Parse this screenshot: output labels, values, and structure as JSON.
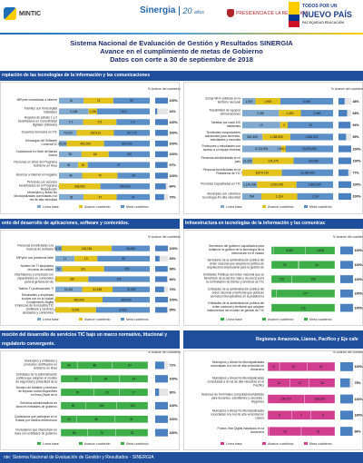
{
  "header": {
    "mintic": "MINTIC",
    "sinergia": "Sinergia",
    "sinergia_years": "20",
    "sinergia_years_sub": "años",
    "presidencia": "PRESIDENCIA DE LA REPÚBLICA",
    "todos_line1": "TODOS POR UN",
    "todos_line2": "NUEVO PAÍS",
    "todos_line3": "PAZ EQUIDAD EDUCACIÓN"
  },
  "titles": {
    "line1": "Sistema Nacional de Evaluación de Gestión y Resultados SINERGIA",
    "line2": "Avance en el cumplimiento de metas de Gobierno",
    "line3": "Datos con corte a 30 de septiembre de 2018"
  },
  "sections": {
    "s1": "ropiación de las tecnologías de la información y las comunicaciones",
    "s2": "ento del desarrollo de aplicaciones, software y contenidos.",
    "s2b": "Infraestructura en tecnologías de la información y las comunicac",
    "s3": "moción del desarrollo de servicios TIC bajo un marco normativo, titucional y regulatorio convergente.",
    "s3b": "Regiones Amazonía, Llanos, Pacífico y Eje cafe"
  },
  "footer": "nte: Sistema Nacional de Evaluación de Gestión y Resultados - SINERGIA",
  "legend": {
    "base": "Línea base",
    "avance": "Avance cuatrienio",
    "meta": "Meta cuatrienio",
    "pct_header": "% Avance del cuatrienio"
  },
  "colors": {
    "base": "#7fa9cf",
    "avance": "#e3c21c",
    "meta": "#5b8fc7",
    "green": "#3eae49",
    "magenta": "#d13d8f",
    "blue_header": "#1f4f9c",
    "pct_bar": "#4a7fc0"
  },
  "chart_data": [
    {
      "type": "bar",
      "id": "c1",
      "categories": [
        "MiPyme conectadas a internet",
        "Trámites con firma digital instalados",
        "Hogares de estrato 1 y 2 beneficiados en Conectividad digitales (millones)",
        "Docentes formados en TIC",
        "Descargas del Software ConectaTIC",
        "Ciudadanos en Nivel de Banda Ancha",
        "Personas en sitios del Programa Gobierno en línea",
        "Accesos a Internet en Hogares",
        "Personas con accesos beneficiados en el Programa Redvolución",
        "Municipios y Áreas No Municipalizadas conectadas a la red de alta velocidad"
      ],
      "series": [
        {
          "name": "Línea base",
          "values": [
            61,
            4168,
            2.1,
            73000,
            100000,
            55,
            30,
            46,
            0,
            35
          ]
        },
        {
          "name": "Avance cuatrienio",
          "values": [
            73,
            1200,
            2.9,
            152913,
            491000,
            66,
            15,
            70,
            336000,
            47
          ]
        },
        {
          "name": "Meta cuatrienio",
          "values": [
            90,
            7421,
            2.9,
            147772,
            600000,
            100,
            97,
            64,
            400000,
            47
          ]
        }
      ],
      "pct": [
        "100%",
        "16%",
        "100%",
        "100%",
        "100%",
        "100%",
        "97%",
        "100%",
        "84%",
        "70%"
      ]
    },
    {
      "type": "bar",
      "id": "c2",
      "categories": [
        "Zonas Wi-Fi públicas en la territorio nacional",
        "Trazabilidad de equipos demarcaciones",
        "Tabletas por cada 100 habitantes",
        "Terminales computadores adicionales para docentes, estudiantes y escuelas",
        "Profesores y estudiantes con acceso a un equipo terminal",
        "Personas administradas en el país",
        "Personas beneficiadas en la Plataforma de TIC",
        "Personas Capacitadas en TIC",
        "Municipios con cobertura tecnología 4G alta velocidad"
      ],
      "series": [
        {
          "name": "Línea base",
          "values": [
            1000,
            2330,
            10,
            861605,
            8215951,
            31333,
            0,
            1140000,
            594
          ]
        },
        {
          "name": "Avance cuatrienio",
          "values": [
            1900,
            1400,
            2.0,
            1186390,
            1000000,
            124276,
            8874710,
            3000000,
            1114
          ]
        },
        {
          "name": "Meta cuatrienio",
          "values": [
            4000,
            2050,
            12,
            1826000,
            10000000,
            120000,
            11480000,
            2800000,
            1114
          ]
        }
      ],
      "pct": [
        "48%",
        "68%",
        "94%",
        "59%",
        "100%",
        "100%",
        "77%",
        "100%",
        "100%"
      ]
    },
    {
      "type": "bar",
      "id": "c3",
      "categories": [
        "Personas beneficiadas a la licencia de Software",
        "MiPyme con presencia Web",
        "Número de TI adoptados recursos de calidad",
        "Diseñadores y empresas con capacidades en contenidos para la generación de contenidos digitales",
        "Talento TI profesionales TI",
        "Estudiantes y empresas lucidos con un la ciudad Cumplimiento Digital",
        "Empresas de la industria TIC (Software y servicios asociados y contenidos digitales)"
      ],
      "series": [
        {
          "name": "Línea base",
          "values": [
            16210,
            11,
            52,
            2,
            54451,
            0,
            12
          ]
        },
        {
          "name": "Avance cuatrienio",
          "values": [
            126181,
            13,
            321,
            169,
            61528,
            460000,
            5000
          ]
        },
        {
          "name": "Meta cuatrienio",
          "values": [
            96009,
            30,
            350,
            319,
            75300,
            460000,
            6623
          ]
        }
      ],
      "pct": [
        "100%",
        "34%",
        "98%",
        "94%",
        "70%",
        "100%",
        "95%"
      ]
    },
    {
      "type": "bar",
      "id": "c4",
      "categories": [
        "Servidores del gobierno capacitados para fortalecer la gestión de la tecnología de la información en el estado",
        "Servidores de la administración pública del orden nacional que adoptan la política de arquitectura empresarial para la gestión de TI",
        "Entidades Públicas del orden nacional que se benefician de acuerdos marco de precio para la contratación de bienes y servicios de TIC",
        "Entidades de la administración pública del orden nacional y territorial que publican servicios interoperables en la plataforma del Estado",
        "Entidades de la administración pública del orden nacional y territorial que adoptan instrumentos del modelo de gestión de TIC"
      ],
      "series": [
        {
          "name": "Línea base",
          "values": [
            300,
            25,
            115,
            23,
            0
          ]
        },
        {
          "name": "Avance cuatrienio",
          "values": [
            5000,
            1,
            0,
            0,
            0
          ]
        },
        {
          "name": "Meta cuatrienio",
          "values": [
            4548,
            34,
            242,
            277,
            216
          ]
        }
      ],
      "pct": [
        "100%",
        "100%",
        "100%",
        "100%",
        "100%"
      ]
    },
    {
      "type": "bar",
      "id": "c5",
      "categories": [
        "Municipios y entidades y productos certificados en Gobierno en línea",
        "Entidades de la administración pública que adoptan el modelo de seguridad y privacidad de la información en el Estado",
        "Número de trámites y servicios de impacto social disponibles en línea (Nivel de la Excelencia)",
        "Servicios administrativos en línea en entidades de gobierno",
        "Ciudadanos que participan en el Estado por medios electrónicos",
        "Ciudadanos que interactúan en línea con entidades de gobierno"
      ],
      "series": [
        {
          "name": "Línea base",
          "values": [
            40,
            37,
            20,
            81,
            20,
            65
          ]
        },
        {
          "name": "Avance cuatrienio",
          "values": [
            85,
            34,
            15,
            100,
            48,
            70
          ]
        },
        {
          "name": "Meta cuatrienio",
          "values": [
            87,
            34,
            17,
            100,
            41,
            78
          ]
        }
      ],
      "pct": [
        "71%",
        "100%",
        "30%",
        "100%",
        "100%",
        "100%"
      ]
    },
    {
      "type": "bar",
      "id": "c6",
      "categories": [
        "Municipios y Áreas No Municipalizadas conectadas a la red de alta velocidad en Amazonía",
        "Municipios y Áreas No Municipalizadas conectadas a la red de alta velocidad en el Pacífico",
        "Sesiones de Terminales computadores/tabletas para docentes, estudiantes y escuelas - Regiones",
        "Municipios y Áreas No Municipalizadas conectadas a la red de alta velocidad en Llanos",
        "Puntos Vive Digital instalados en la Amazonía"
      ],
      "series": [
        {
          "name": "Línea base",
          "values": [
            9,
            14,
            0,
            9,
            1
          ]
        },
        {
          "name": "Avance cuatrienio",
          "values": [
            21,
            12,
            236273,
            7,
            22
          ]
        },
        {
          "name": "Meta cuatrienio",
          "values": [
            21,
            16,
            196673,
            9,
            23
          ]
        }
      ],
      "pct": [
        "100%",
        "75%",
        "100%",
        "100%",
        "96%"
      ]
    }
  ]
}
